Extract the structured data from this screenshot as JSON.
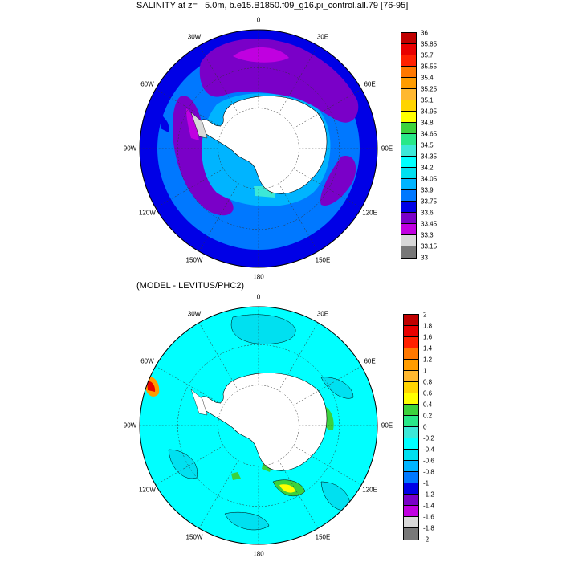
{
  "panel1": {
    "title": "SALINITY at z=   5.0m, b.e15.B1850.f09_g16.pi_control.all.79 [76-95]",
    "lon_labels": [
      "0",
      "30E",
      "60E",
      "90E",
      "120E",
      "150E",
      "180",
      "150W",
      "120W",
      "90W",
      "60W",
      "30W"
    ],
    "colorbar": {
      "ticks": [
        "36",
        "35.85",
        "35.7",
        "35.55",
        "35.4",
        "35.25",
        "35.1",
        "34.95",
        "34.8",
        "34.65",
        "34.5",
        "34.35",
        "34.2",
        "34.05",
        "33.9",
        "33.75",
        "33.6",
        "33.45",
        "33.3",
        "33.15",
        "33"
      ],
      "colors": [
        "#c00000",
        "#e80000",
        "#ff2000",
        "#ff7800",
        "#ff9c00",
        "#ffb830",
        "#ffd400",
        "#ffff00",
        "#3cd23c",
        "#28e888",
        "#3ce8d8",
        "#00ffff",
        "#00e0f0",
        "#00b4ff",
        "#0078ff",
        "#0000e6",
        "#7a00c8",
        "#c000e0",
        "#d8d8d8",
        "#787878"
      ]
    }
  },
  "panel2": {
    "title": "(MODEL - LEVITUS/PHC2)",
    "lon_labels": [
      "0",
      "30E",
      "60E",
      "90E",
      "120E",
      "150E",
      "180",
      "150W",
      "120W",
      "90W",
      "60W",
      "30W"
    ],
    "colorbar": {
      "ticks": [
        "2",
        "1.8",
        "1.6",
        "1.4",
        "1.2",
        "1",
        "0.8",
        "0.6",
        "0.4",
        "0.2",
        "0",
        "-0.2",
        "-0.4",
        "-0.6",
        "-0.8",
        "-1",
        "-1.2",
        "-1.4",
        "-1.6",
        "-1.8",
        "-2"
      ],
      "colors": [
        "#c00000",
        "#e80000",
        "#ff2000",
        "#ff7800",
        "#ff9c00",
        "#ffb830",
        "#ffd400",
        "#ffff00",
        "#3cd23c",
        "#28e888",
        "#3ce8d8",
        "#00ffff",
        "#00e0f0",
        "#00b4ff",
        "#0078ff",
        "#0000e6",
        "#7a00c8",
        "#c000e0",
        "#d8d8d8",
        "#787878"
      ]
    }
  }
}
